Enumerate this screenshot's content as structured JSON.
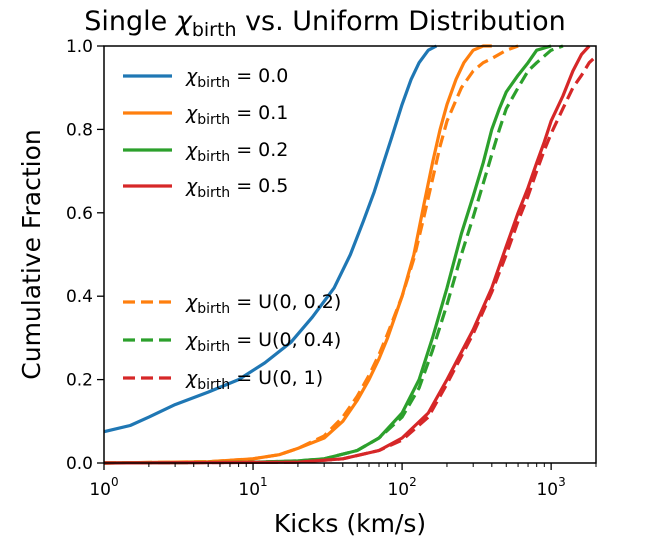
{
  "chart_data": {
    "type": "line",
    "title_prefix": "Single ",
    "title_symbol": "χ",
    "title_subscript": "birth",
    "title_suffix": " vs. Uniform Distribution",
    "xlabel": "Kicks (km/s)",
    "ylabel": "Cumulative Fraction",
    "x_scale": "log",
    "xlim": [
      1,
      2000
    ],
    "ylim": [
      0,
      1.0
    ],
    "x_ticks": [
      {
        "value": 1,
        "base": "10",
        "exp": "0"
      },
      {
        "value": 10,
        "base": "10",
        "exp": "1"
      },
      {
        "value": 100,
        "base": "10",
        "exp": "2"
      },
      {
        "value": 1000,
        "base": "10",
        "exp": "3"
      }
    ],
    "y_ticks": [
      {
        "value": 0,
        "label": "0.0"
      },
      {
        "value": 0.2,
        "label": "0.2"
      },
      {
        "value": 0.4,
        "label": "0.4"
      },
      {
        "value": 0.6,
        "label": "0.6"
      },
      {
        "value": 0.8,
        "label": "0.8"
      },
      {
        "value": 1.0,
        "label": "1.0"
      }
    ],
    "grid": false,
    "legend_placement": "upper-left",
    "series": [
      {
        "symbol": "χ",
        "sub": "birth",
        "rest": " = 0.0",
        "color": "#1f77b4",
        "style": "solid",
        "x": [
          1,
          1.5,
          2,
          3,
          5,
          8,
          12,
          18,
          25,
          35,
          45,
          55,
          65,
          75,
          85,
          100,
          115,
          130,
          150,
          170
        ],
        "y": [
          0.075,
          0.09,
          0.11,
          0.14,
          0.17,
          0.2,
          0.24,
          0.29,
          0.35,
          0.42,
          0.5,
          0.58,
          0.65,
          0.72,
          0.78,
          0.86,
          0.92,
          0.96,
          0.99,
          1.0
        ]
      },
      {
        "symbol": "χ",
        "sub": "birth",
        "rest": " = 0.1",
        "color": "#ff7f0e",
        "style": "solid",
        "x": [
          1,
          5,
          10,
          15,
          20,
          30,
          40,
          50,
          60,
          70,
          80,
          100,
          120,
          140,
          160,
          180,
          200,
          230,
          260,
          300,
          350,
          400
        ],
        "y": [
          0,
          0.003,
          0.01,
          0.02,
          0.035,
          0.06,
          0.1,
          0.15,
          0.2,
          0.25,
          0.3,
          0.4,
          0.5,
          0.62,
          0.72,
          0.8,
          0.86,
          0.92,
          0.96,
          0.99,
          1.0,
          1.0
        ]
      },
      {
        "symbol": "χ",
        "sub": "birth",
        "rest": " = 0.2",
        "color": "#2ca02c",
        "style": "solid",
        "x": [
          1,
          10,
          20,
          30,
          50,
          70,
          100,
          130,
          160,
          200,
          250,
          300,
          350,
          400,
          450,
          500,
          600,
          700,
          800,
          1000
        ],
        "y": [
          0,
          0.002,
          0.005,
          0.01,
          0.03,
          0.06,
          0.12,
          0.2,
          0.3,
          0.42,
          0.55,
          0.64,
          0.72,
          0.8,
          0.85,
          0.89,
          0.93,
          0.96,
          0.99,
          1.0
        ]
      },
      {
        "symbol": "χ",
        "sub": "birth",
        "rest": " = 0.5",
        "color": "#d62728",
        "style": "solid",
        "x": [
          1,
          20,
          40,
          70,
          100,
          150,
          200,
          300,
          400,
          500,
          600,
          700,
          800,
          900,
          1000,
          1200,
          1400,
          1600,
          1800
        ],
        "y": [
          0,
          0.002,
          0.01,
          0.03,
          0.06,
          0.12,
          0.2,
          0.32,
          0.42,
          0.52,
          0.6,
          0.66,
          0.72,
          0.77,
          0.82,
          0.88,
          0.94,
          0.98,
          1.0
        ]
      },
      {
        "symbol": "χ",
        "sub": "birth",
        "rest": " = U(0, 0.2)",
        "color": "#ff7f0e",
        "style": "dashed",
        "x": [
          1,
          5,
          10,
          15,
          20,
          30,
          40,
          50,
          60,
          70,
          80,
          100,
          120,
          140,
          160,
          180,
          200,
          250,
          300,
          350,
          400,
          500,
          600
        ],
        "y": [
          0,
          0.003,
          0.01,
          0.02,
          0.035,
          0.065,
          0.11,
          0.16,
          0.21,
          0.26,
          0.31,
          0.4,
          0.49,
          0.59,
          0.68,
          0.76,
          0.82,
          0.9,
          0.94,
          0.96,
          0.97,
          0.99,
          1.0
        ]
      },
      {
        "symbol": "χ",
        "sub": "birth",
        "rest": " = U(0, 0.4)",
        "color": "#2ca02c",
        "style": "dashed",
        "x": [
          1,
          10,
          20,
          30,
          50,
          70,
          100,
          130,
          160,
          200,
          250,
          300,
          350,
          400,
          450,
          500,
          600,
          700,
          800,
          1000,
          1200
        ],
        "y": [
          0,
          0.002,
          0.005,
          0.01,
          0.03,
          0.06,
          0.11,
          0.18,
          0.27,
          0.38,
          0.5,
          0.59,
          0.67,
          0.74,
          0.8,
          0.85,
          0.9,
          0.94,
          0.96,
          0.99,
          1.0
        ]
      },
      {
        "symbol": "χ",
        "sub": "birth",
        "rest": " = U(0, 1)",
        "color": "#d62728",
        "style": "dashed",
        "x": [
          1,
          20,
          40,
          70,
          100,
          150,
          200,
          300,
          400,
          500,
          600,
          700,
          800,
          900,
          1000,
          1200,
          1400,
          1600,
          1800,
          2000
        ],
        "y": [
          0,
          0.002,
          0.01,
          0.03,
          0.055,
          0.11,
          0.19,
          0.31,
          0.41,
          0.5,
          0.58,
          0.64,
          0.7,
          0.75,
          0.79,
          0.85,
          0.9,
          0.93,
          0.96,
          0.975
        ]
      }
    ]
  }
}
